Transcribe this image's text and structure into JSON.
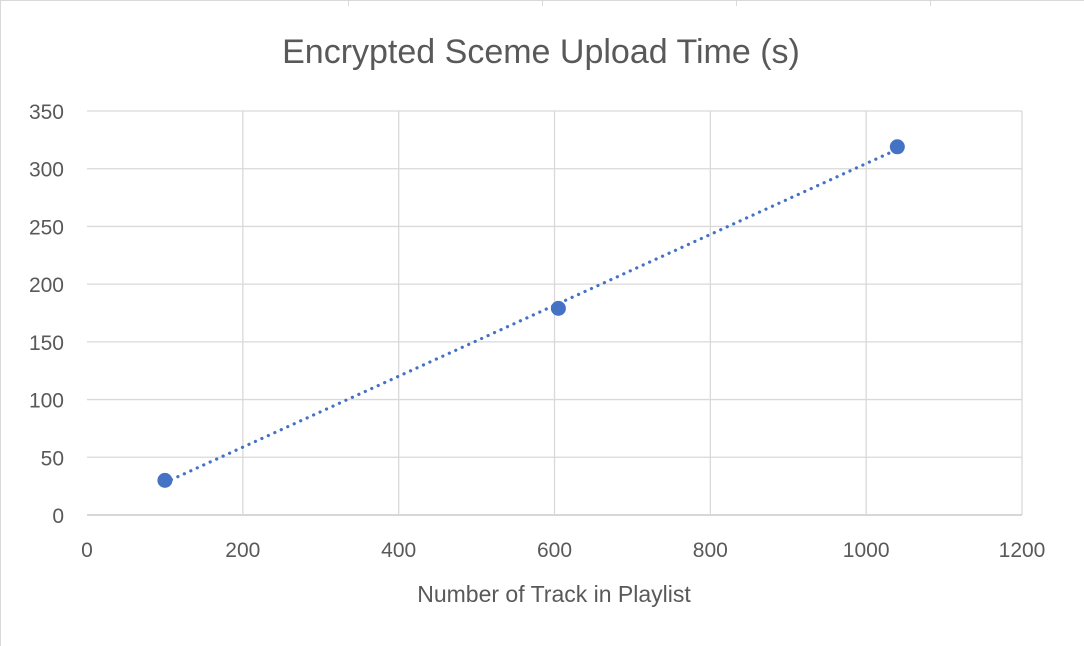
{
  "chart_data": {
    "type": "scatter",
    "title": "Encrypted Sceme Upload Time (s)",
    "xlabel": "Number of Track in Playlist",
    "ylabel": "",
    "xlim": [
      0,
      1200
    ],
    "ylim": [
      0,
      350
    ],
    "x_ticks": [
      "0",
      "200",
      "400",
      "600",
      "800",
      "1000",
      "1200"
    ],
    "y_ticks": [
      "0",
      "50",
      "100",
      "150",
      "200",
      "250",
      "300",
      "350"
    ],
    "grid": true,
    "legend": "none",
    "series": [
      {
        "x": [
          100,
          605,
          1040
        ],
        "y": [
          30,
          179,
          319
        ],
        "marker_color": "#4472c4",
        "trendline": {
          "type": "linear",
          "style": "dotted",
          "color": "#4472c4"
        }
      }
    ]
  }
}
